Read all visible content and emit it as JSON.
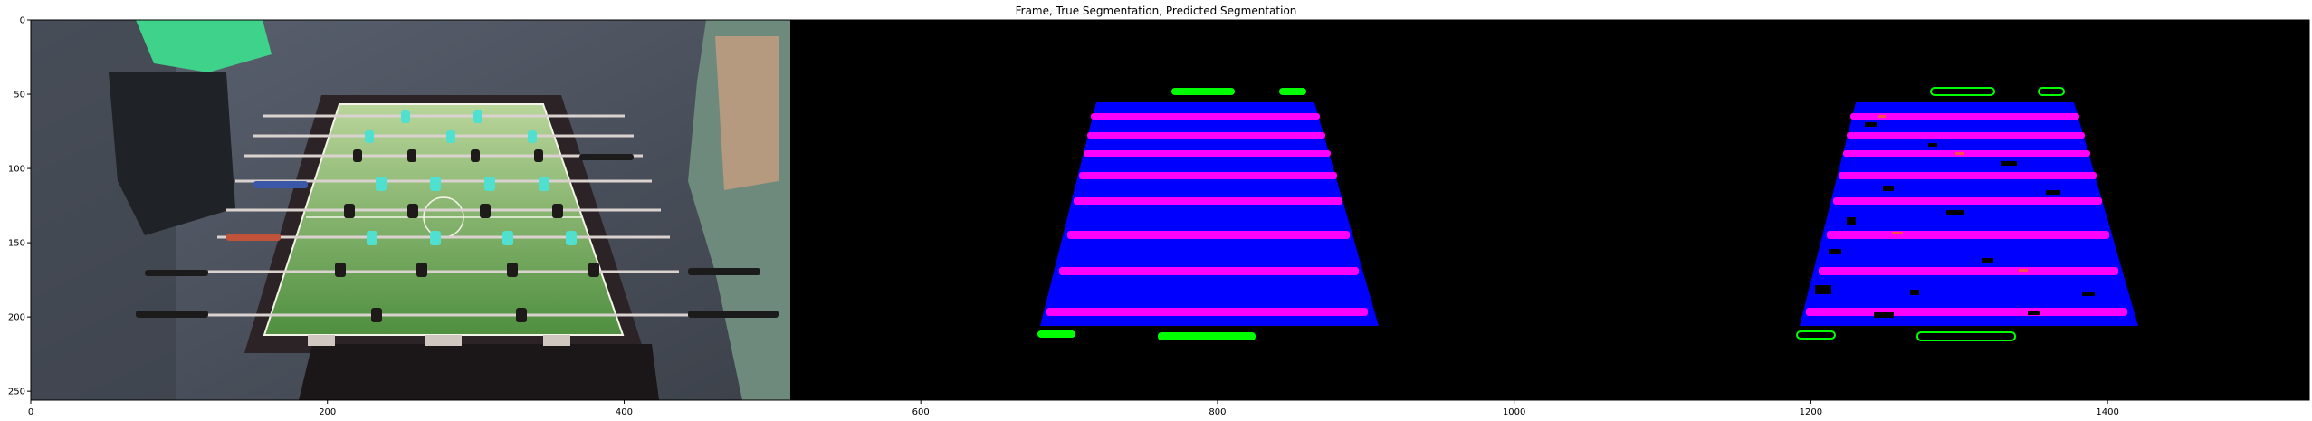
{
  "figure": {
    "title": "Frame, True Segmentation, Predicted Segmentation"
  },
  "axes": {
    "x_ticks": [
      {
        "value": 0,
        "label": "0"
      },
      {
        "value": 200,
        "label": "200"
      },
      {
        "value": 400,
        "label": "400"
      },
      {
        "value": 600,
        "label": "600"
      },
      {
        "value": 800,
        "label": "800"
      },
      {
        "value": 1000,
        "label": "1000"
      },
      {
        "value": 1200,
        "label": "1200"
      },
      {
        "value": 1400,
        "label": "1400"
      }
    ],
    "y_ticks": [
      {
        "value": 0,
        "label": "0"
      },
      {
        "value": 50,
        "label": "50"
      },
      {
        "value": 100,
        "label": "100"
      },
      {
        "value": 150,
        "label": "150"
      },
      {
        "value": 200,
        "label": "200"
      },
      {
        "value": 250,
        "label": "250"
      }
    ],
    "x_range": [
      0,
      1536
    ],
    "y_range": [
      256,
      0
    ]
  },
  "panels": [
    {
      "name": "frame",
      "content": "photo of foosball table with players"
    },
    {
      "name": "true-segmentation",
      "content": "ground truth mask"
    },
    {
      "name": "predicted-segmentation",
      "content": "predicted mask"
    }
  ],
  "colors": {
    "background_mask": "#000000",
    "table": "#0000ff",
    "rods": "#ff00ff",
    "goal_markers": "#00ff00",
    "pitch": "#5d9a48",
    "table_frame": "#2b2325"
  }
}
